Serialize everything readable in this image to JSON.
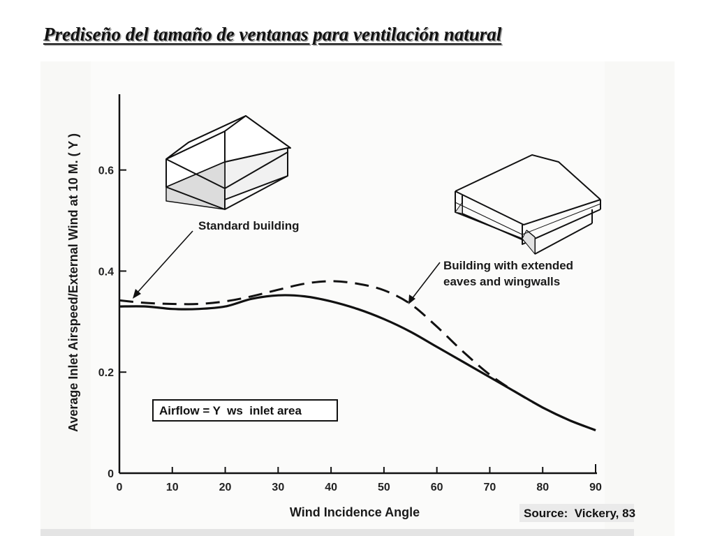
{
  "slide": {
    "title": "Prediseño del tamaño de ventanas para ventilación natural"
  },
  "chart_data": {
    "type": "line",
    "xlabel": "Wind Incidence Angle",
    "ylabel": "Average Inlet Airspeed/External Wind at 10 M. ( Y )",
    "xlim": [
      0,
      90
    ],
    "ylim": [
      0,
      0.75
    ],
    "x_ticks": [
      "0",
      "10",
      "20",
      "30",
      "40",
      "50",
      "60",
      "70",
      "80",
      "90"
    ],
    "y_ticks": [
      "0",
      "0.2",
      "0.4",
      "0.6"
    ],
    "grid": false,
    "series": [
      {
        "name": "Standard building",
        "style": "solid",
        "x": [
          0,
          5,
          10,
          15,
          20,
          25,
          30,
          35,
          40,
          45,
          50,
          55,
          60,
          65,
          70,
          75,
          80,
          85,
          90
        ],
        "y": [
          0.33,
          0.33,
          0.325,
          0.325,
          0.33,
          0.345,
          0.352,
          0.35,
          0.34,
          0.325,
          0.305,
          0.28,
          0.25,
          0.22,
          0.19,
          0.16,
          0.13,
          0.105,
          0.085
        ]
      },
      {
        "name": "Building with extended eaves and wingwalls",
        "style": "dashed",
        "x": [
          0,
          5,
          10,
          15,
          20,
          25,
          30,
          35,
          40,
          45,
          50,
          55,
          60,
          65,
          70,
          75,
          80,
          85,
          90
        ],
        "y": [
          0.342,
          0.337,
          0.335,
          0.335,
          0.34,
          0.35,
          0.363,
          0.375,
          0.38,
          0.375,
          0.362,
          0.335,
          0.29,
          0.24,
          0.195,
          0.16,
          0.13,
          0.105,
          0.085
        ]
      }
    ],
    "annotations": {
      "standard_label": "Standard building",
      "extended_label_line1": "Building with extended",
      "extended_label_line2": "eaves and wingwalls",
      "formula_box": "Airflow = Y  ws  inlet area",
      "source": "Source:  Vickery, 83"
    }
  }
}
